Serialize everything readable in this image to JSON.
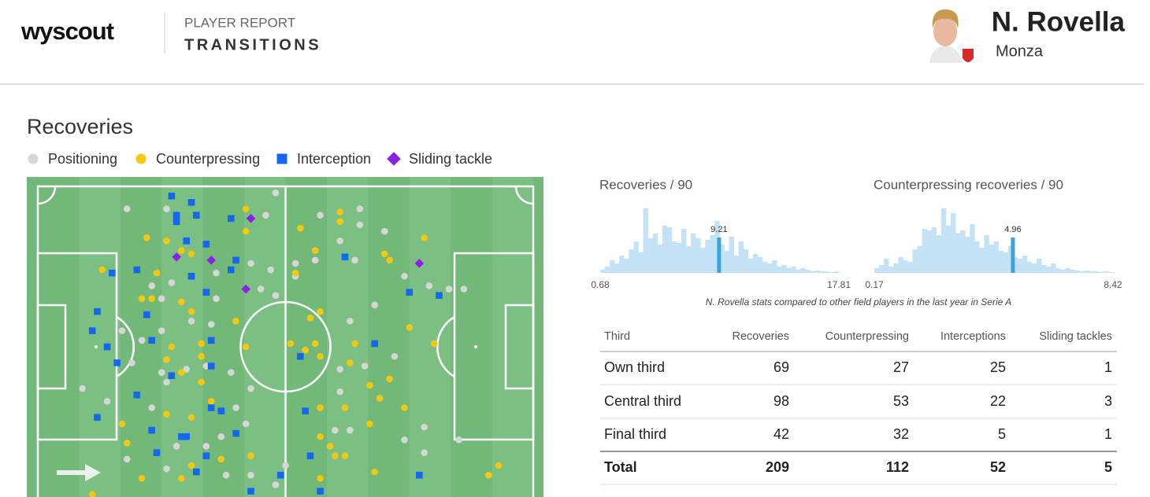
{
  "header": {
    "logo": "wyscout",
    "report_label": "PLAYER REPORT",
    "report_title": "TRANSITIONS",
    "player_name": "N. Rovella",
    "team": "Monza"
  },
  "section_title": "Recoveries",
  "pitch": {
    "type": "scatter",
    "xlim": [
      0,
      100
    ],
    "ylim": [
      0,
      100
    ],
    "series": [
      {
        "name": "Positioning",
        "color": "#d6d6d6",
        "shape": "circle",
        "x": [
          18,
          26,
          46,
          48,
          65,
          57,
          65,
          70,
          61,
          56,
          52,
          47,
          43,
          36,
          27,
          23,
          25,
          36,
          45,
          48,
          31,
          35,
          25,
          21,
          17,
          19,
          25,
          26,
          9,
          14,
          23,
          34,
          30,
          39,
          43,
          40,
          42,
          37,
          34,
          28,
          18,
          26,
          38,
          43,
          48,
          52,
          64,
          74,
          79,
          68,
          63,
          72,
          66,
          61,
          61,
          60,
          63,
          74,
          78,
          85,
          86,
          83,
          78,
          50
        ],
        "y": [
          7,
          7,
          9,
          2,
          7,
          9,
          12,
          14,
          17,
          23,
          24,
          26,
          24,
          27,
          30,
          31,
          35,
          35,
          32,
          34,
          42,
          43,
          45,
          48,
          45,
          55,
          58,
          61,
          63,
          67,
          69,
          56,
          57,
          58,
          63,
          69,
          74,
          78,
          81,
          81,
          85,
          88,
          90,
          90,
          93,
          28,
          23,
          28,
          31,
          37,
          42,
          53,
          56,
          57,
          64,
          76,
          76,
          79,
          83,
          79,
          32,
          32,
          75,
          87
        ]
      },
      {
        "name": "Counterpressing",
        "color": "#f2c811",
        "shape": "circle",
        "x": [
          22,
          26,
          29,
          31,
          42,
          42,
          13,
          24,
          23,
          21,
          29,
          31,
          33,
          27,
          26,
          29,
          33,
          40,
          42,
          33,
          35,
          31,
          26,
          17,
          18,
          31,
          37,
          43,
          21,
          11,
          29,
          61,
          61,
          53,
          56,
          70,
          71,
          78,
          52,
          57,
          55,
          51,
          56,
          64,
          80,
          75,
          63,
          67,
          71,
          69,
          74,
          57,
          62,
          67,
          57,
          59,
          60,
          62,
          57,
          68,
          93,
          91,
          57,
          54
        ],
        "y": [
          16,
          17,
          20,
          21,
          7,
          14,
          26,
          27,
          35,
          35,
          36,
          39,
          49,
          50,
          54,
          58,
          53,
          42,
          50,
          61,
          67,
          72,
          71,
          74,
          80,
          87,
          85,
          84,
          91,
          96,
          91,
          8,
          11,
          13,
          20,
          21,
          23,
          16,
          27,
          39,
          41,
          49,
          49,
          49,
          49,
          44,
          55,
          62,
          60,
          66,
          69,
          69,
          69,
          74,
          78,
          81,
          84,
          84,
          91,
          89,
          87,
          90,
          53,
          51
        ]
      },
      {
        "name": "Interception",
        "color": "#1467f0",
        "shape": "square",
        "x": [
          27,
          28,
          28,
          31,
          32,
          39,
          30,
          34,
          15,
          20,
          31,
          40,
          39,
          34,
          22,
          11,
          12,
          14,
          16,
          23,
          35,
          35,
          20,
          27,
          12,
          35,
          37,
          23,
          29,
          30,
          40,
          24,
          34,
          32,
          49,
          43,
          62,
          75,
          81,
          68,
          53,
          54,
          55,
          77,
          57
        ],
        "y": [
          3,
          9,
          11,
          5,
          9,
          10,
          17,
          18,
          27,
          26,
          28,
          23,
          26,
          33,
          40,
          45,
          39,
          50,
          55,
          48,
          48,
          56,
          65,
          59,
          72,
          69,
          70,
          76,
          78,
          78,
          77,
          83,
          84,
          89,
          90,
          95,
          22,
          33,
          34,
          49,
          53,
          70,
          84,
          90,
          95
        ]
      },
      {
        "name": "Sliding tackle",
        "color": "#8c1fe8",
        "shape": "diamond",
        "x": [
          43,
          28,
          35,
          42,
          77
        ],
        "y": [
          10,
          22,
          23,
          32,
          24
        ]
      }
    ]
  },
  "histograms": [
    {
      "title": "Recoveries / 90",
      "min": 0.68,
      "max": 17.81,
      "player_value": 9.21,
      "counts": [
        4,
        8,
        16,
        12,
        22,
        18,
        30,
        40,
        26,
        82,
        44,
        50,
        36,
        60,
        58,
        40,
        38,
        56,
        34,
        50,
        44,
        32,
        42,
        48,
        66,
        36,
        28,
        46,
        22,
        40,
        30,
        18,
        24,
        20,
        14,
        12,
        16,
        8,
        10,
        6,
        8,
        4,
        6,
        4,
        2,
        3,
        2,
        2,
        1,
        2
      ]
    },
    {
      "title": "Counterpressing recoveries / 90",
      "min": 0.17,
      "max": 8.42,
      "player_value": 4.96,
      "counts": [
        6,
        10,
        18,
        8,
        12,
        20,
        16,
        14,
        30,
        34,
        56,
        54,
        58,
        48,
        82,
        60,
        76,
        50,
        54,
        46,
        62,
        40,
        32,
        48,
        36,
        40,
        28,
        26,
        34,
        20,
        18,
        22,
        14,
        12,
        18,
        10,
        8,
        12,
        6,
        4,
        6,
        4,
        3,
        2,
        3,
        2,
        2,
        1,
        2,
        1
      ]
    }
  ],
  "note": "N. Rovella stats compared to other field players in the last year in Serie A",
  "table": {
    "header": [
      "Third",
      "Recoveries",
      "Counterpressing",
      "Interceptions",
      "Sliding tackles"
    ],
    "rows": [
      [
        "Own third",
        69,
        27,
        25,
        1
      ],
      [
        "Central third",
        98,
        53,
        22,
        3
      ],
      [
        "Final third",
        42,
        32,
        5,
        1
      ]
    ],
    "total": [
      "Total",
      209,
      112,
      52,
      5
    ]
  }
}
